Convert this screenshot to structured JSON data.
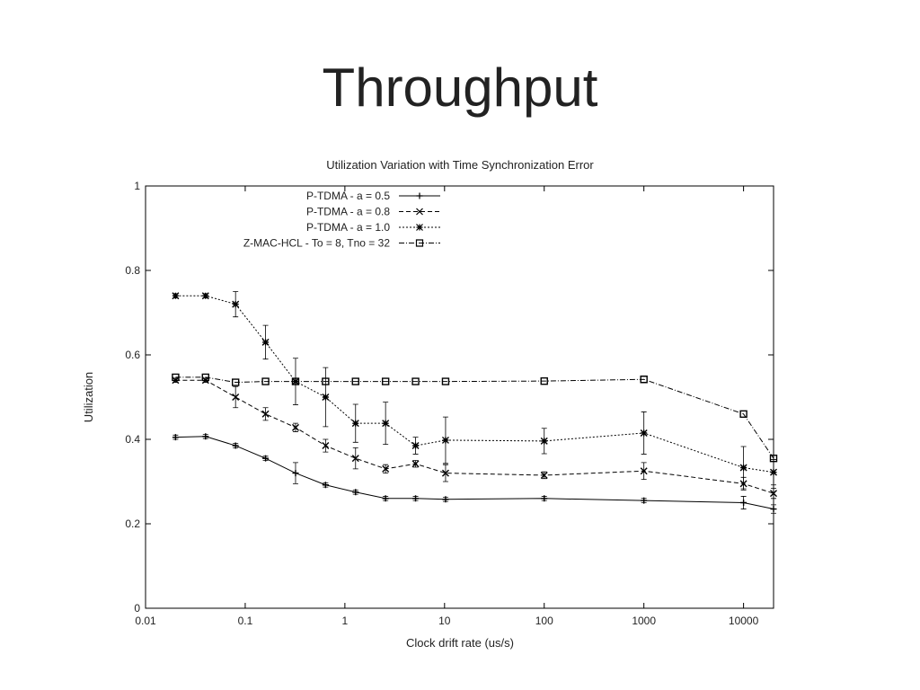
{
  "slide_title": "Throughput",
  "chart_data": {
    "type": "line",
    "title": "Utilization Variation with Time Synchronization Error",
    "x_label": "Clock drift rate (us/s)",
    "y_label": "Utilization",
    "x_scale": "log",
    "xlim": [
      0.01,
      20000
    ],
    "ylim": [
      0,
      1
    ],
    "xticks": [
      0.01,
      0.1,
      1,
      10,
      100,
      1000,
      10000
    ],
    "yticks": [
      0,
      0.2,
      0.4,
      0.6,
      0.8,
      1
    ],
    "legend": "upper-left",
    "x": [
      0.02,
      0.04,
      0.08,
      0.16,
      0.32,
      0.64,
      1.28,
      2.56,
      5.12,
      10.24,
      100,
      1000,
      10000,
      20000
    ],
    "series": [
      {
        "name": "P-TDMA - a = 0.5",
        "color": "#000000",
        "marker": "plus",
        "dash": "solid",
        "values": [
          0.405,
          0.407,
          0.385,
          0.355,
          0.32,
          0.292,
          0.275,
          0.26,
          0.26,
          0.258,
          0.26,
          0.255,
          0.25,
          0.235
        ],
        "errors": [
          0.005,
          0.005,
          0.005,
          0.005,
          0.025,
          0.005,
          0.005,
          0.005,
          0.005,
          0.005,
          0.005,
          0.005,
          0.015,
          0.01
        ]
      },
      {
        "name": "P-TDMA - a = 0.8",
        "color": "#000000",
        "marker": "cross",
        "dash": "dashed",
        "values": [
          0.54,
          0.54,
          0.5,
          0.46,
          0.428,
          0.385,
          0.355,
          0.33,
          0.342,
          0.32,
          0.315,
          0.325,
          0.295,
          0.272
        ],
        "errors": [
          0.005,
          0.005,
          0.025,
          0.015,
          0.01,
          0.015,
          0.025,
          0.01,
          0.008,
          0.02,
          0.008,
          0.02,
          0.015,
          0.012
        ]
      },
      {
        "name": "P-TDMA - a = 1.0",
        "color": "#000000",
        "marker": "star",
        "dash": "dotted",
        "values": [
          0.74,
          0.74,
          0.72,
          0.63,
          0.537,
          0.5,
          0.438,
          0.438,
          0.385,
          0.398,
          0.396,
          0.415,
          0.333,
          0.322
        ],
        "errors": [
          0.005,
          0.005,
          0.03,
          0.04,
          0.055,
          0.07,
          0.045,
          0.05,
          0.02,
          0.055,
          0.03,
          0.05,
          0.05,
          0.03
        ]
      },
      {
        "name": "Z-MAC-HCL - To = 8, Tno = 32",
        "color": "#000000",
        "marker": "square",
        "dash": "dashdot",
        "values": [
          0.547,
          0.547,
          0.535,
          0.537,
          0.537,
          0.537,
          0.537,
          0.537,
          0.537,
          0.537,
          0.538,
          0.542,
          0.46,
          0.355
        ]
      }
    ]
  }
}
